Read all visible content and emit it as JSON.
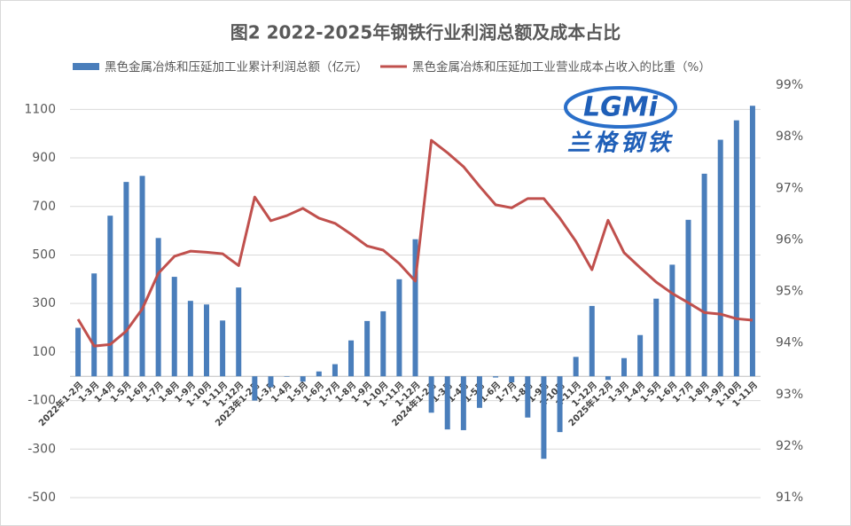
{
  "chart_data": {
    "type": "bar-line",
    "title": "图2 2022-2025年钢铁行业利润总额及成本占比",
    "watermark": "LGMi",
    "watermark_caption": "兰格钢铁",
    "categories": [
      "2022年1-2月",
      "1-3月",
      "1-4月",
      "1-5月",
      "1-6月",
      "1-7月",
      "1-8月",
      "1-9月",
      "1-10月",
      "1-11月",
      "1-12月",
      "2023年1-2月",
      "1-3月",
      "1-4月",
      "1-5月",
      "1-6月",
      "1-7月",
      "1-8月",
      "1-9月",
      "1-10月",
      "1-11月",
      "1-12月",
      "2024年1-2月",
      "1-3月",
      "1-4月",
      "1-5月",
      "1-6月",
      "1-7月",
      "1-8月",
      "1-9月",
      "1-10月",
      "1-11月",
      "1-12月",
      "2025年1-2月",
      "1-3月",
      "1-4月",
      "1-5月",
      "1-6月",
      "1-7月",
      "1-8月",
      "1-9月",
      "1-10月",
      "1-11月"
    ],
    "series": [
      {
        "name": "黑色金属冶炼和压延加工业累计利润总额（亿元）",
        "type": "bar",
        "color": "#4a7ebb",
        "values": [
          200,
          424,
          662,
          801,
          826,
          570,
          410,
          311,
          296,
          230,
          366,
          -100,
          -45,
          -2,
          -22,
          20,
          50,
          148,
          228,
          268,
          400,
          565,
          -150,
          -219,
          -222,
          -130,
          -5,
          -25,
          -170,
          -340,
          -230,
          80,
          290,
          -15,
          75,
          170,
          320,
          460,
          645,
          835,
          975,
          1055,
          1115
        ]
      },
      {
        "name": "黑色金属冶炼和压延加工业营业成本占收入的比重（%）",
        "type": "line",
        "axis": "y2",
        "color": "#c0504d",
        "values": [
          94.46,
          93.94,
          93.97,
          94.23,
          94.66,
          95.35,
          95.68,
          95.78,
          95.76,
          95.73,
          95.5,
          96.83,
          96.37,
          96.47,
          96.61,
          96.42,
          96.32,
          96.11,
          95.88,
          95.8,
          95.54,
          95.2,
          97.93,
          97.69,
          97.42,
          97.04,
          96.68,
          96.62,
          96.8,
          96.8,
          96.42,
          95.97,
          95.42,
          96.38,
          95.75,
          95.46,
          95.18,
          94.96,
          94.78,
          94.59,
          94.56,
          94.47,
          94.44
        ]
      }
    ],
    "ylim": [
      -500,
      1200
    ],
    "yticks": [
      -500,
      -300,
      -100,
      100,
      300,
      500,
      700,
      900,
      1100
    ],
    "y2lim": [
      91,
      99
    ],
    "y2ticks": [
      {
        "value": 91,
        "label": "91%"
      },
      {
        "value": 92,
        "label": "92%"
      },
      {
        "value": 93,
        "label": "93%"
      },
      {
        "value": 94,
        "label": "94%"
      },
      {
        "value": 95,
        "label": "95%"
      },
      {
        "value": 96,
        "label": "96%"
      },
      {
        "value": 97,
        "label": "97%"
      },
      {
        "value": 98,
        "label": "98%"
      },
      {
        "value": 99,
        "label": "99%"
      }
    ],
    "grid": true
  }
}
